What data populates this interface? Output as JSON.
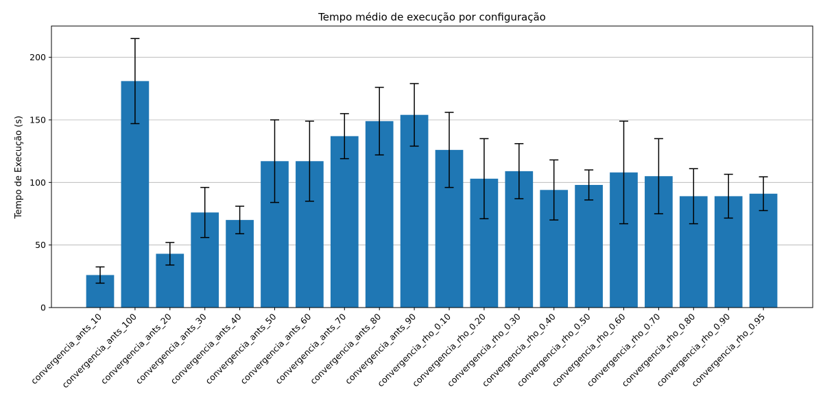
{
  "chart_data": {
    "type": "bar",
    "title": "Tempo médio de execução por configuração",
    "xlabel": "",
    "ylabel": "Tempo de Execução (s)",
    "ylim": [
      0,
      225
    ],
    "yticks": [
      0,
      50,
      100,
      150,
      200
    ],
    "grid": "y",
    "bar_color": "#1f77b4",
    "error_color": "#000000",
    "categories": [
      "convergencia_ants_10",
      "convergencia_ants_100",
      "convergencia_ants_20",
      "convergencia_ants_30",
      "convergencia_ants_40",
      "convergencia_ants_50",
      "convergencia_ants_60",
      "convergencia_ants_70",
      "convergencia_ants_80",
      "convergencia_ants_90",
      "convergencia_rho_0.10",
      "convergencia_rho_0.20",
      "convergencia_rho_0.30",
      "convergencia_rho_0.40",
      "convergencia_rho_0.50",
      "convergencia_rho_0.60",
      "convergencia_rho_0.70",
      "convergencia_rho_0.80",
      "convergencia_rho_0.90",
      "convergencia_rho_0.95"
    ],
    "values": [
      26,
      181,
      43,
      76,
      70,
      117,
      117,
      137,
      149,
      154,
      126,
      103,
      109,
      94,
      98,
      108,
      105,
      89,
      89,
      91
    ],
    "errors": [
      6.5,
      34,
      9,
      20,
      11,
      33,
      32,
      18,
      27,
      25,
      30,
      32,
      22,
      24,
      12,
      41,
      30,
      22,
      17.5,
      13.5
    ]
  }
}
